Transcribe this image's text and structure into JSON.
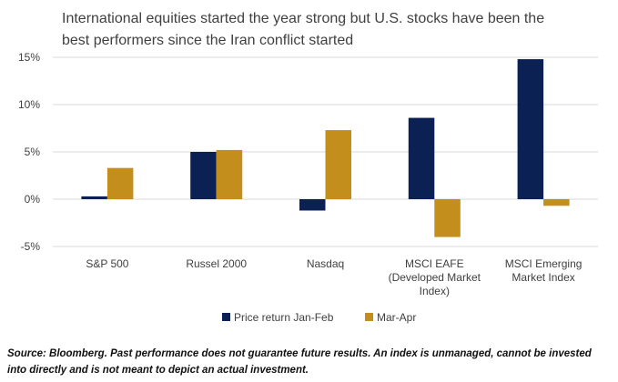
{
  "chart_data": {
    "type": "bar",
    "title": "International equities started the year strong but U.S. stocks have been the best performers since the Iran conflict started",
    "categories": [
      [
        "S&P 500"
      ],
      [
        "Russel 2000"
      ],
      [
        "Nasdaq"
      ],
      [
        "MSCI EAFE",
        "(Developed Market",
        "Index)"
      ],
      [
        "MSCI Emerging",
        "Market Index"
      ]
    ],
    "series": [
      {
        "name": "Price return Jan-Feb",
        "color": "#0b2154",
        "values": [
          0.3,
          5.0,
          -1.2,
          8.6,
          14.8
        ]
      },
      {
        "name": "Mar-Apr",
        "color": "#c48e1c",
        "values": [
          3.3,
          5.2,
          7.3,
          -4.0,
          -0.7
        ]
      }
    ],
    "y_ticks": [
      "15%",
      "10%",
      "5%",
      "0%",
      "-5%"
    ],
    "y_tick_values": [
      15,
      10,
      5,
      0,
      -5
    ],
    "ylim": [
      -5,
      15
    ],
    "xlabel": "",
    "ylabel": "",
    "grid": true,
    "legend_position": "bottom"
  },
  "footer": {
    "source_line1": "Source: Bloomberg. Past performance does not guarantee future results. An index is unmanaged, cannot be invested",
    "source_line2": "into directly and is not meant to depict an actual investment."
  }
}
